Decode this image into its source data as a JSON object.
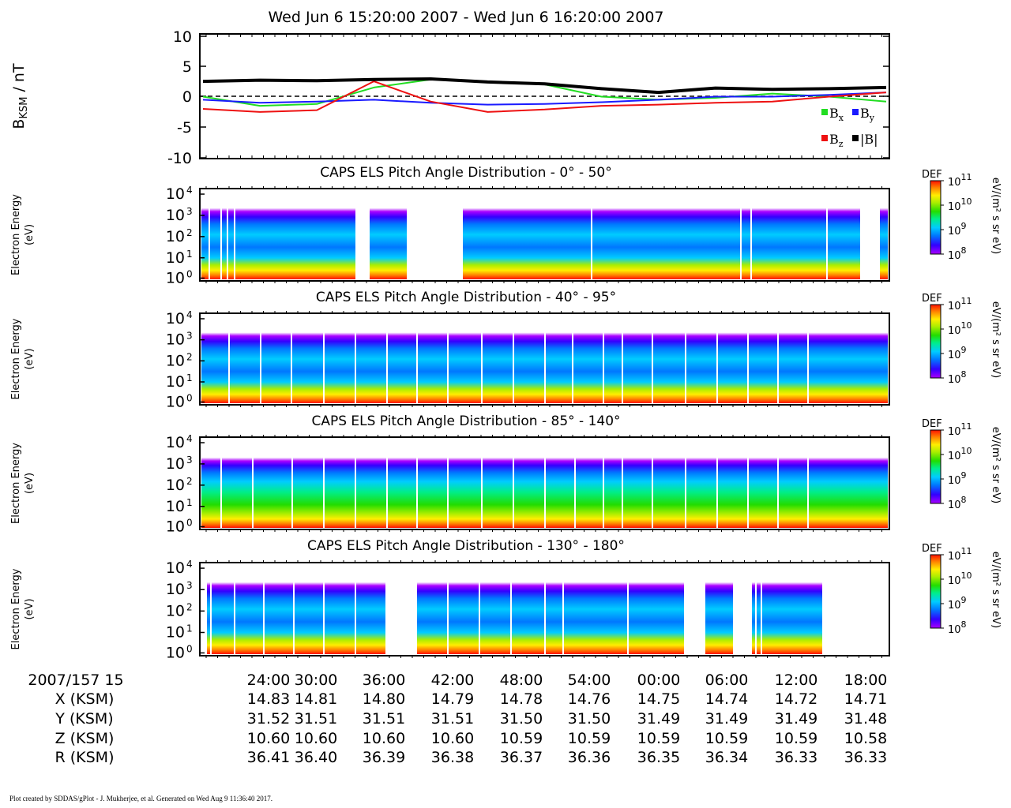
{
  "header": {
    "title": "Wed Jun 6 15:20:00 2007 - Wed Jun 6 16:20:00 2007"
  },
  "footer": {
    "text": "Plot created by SDDAS/gPlot - J. Mukherjee, et al.  Generated on Wed Aug 9 11:36:40 2017."
  },
  "colors": {
    "bx": "#22dd22",
    "by": "#1a1aff",
    "bz": "#ee1111",
    "bmag": "#000000",
    "colormap": [
      "#aa00ff",
      "#3300ff",
      "#0077ff",
      "#00ccff",
      "#00ee88",
      "#22dd00",
      "#aaee00",
      "#ffee00",
      "#ff8800",
      "#ff1100"
    ]
  },
  "chart_data": [
    {
      "type": "line",
      "ylabel": "BKSM / nT",
      "ylabel_main": "B",
      "ylabel_sub": "KSM",
      "ylabel_unit": "/ nT",
      "ylim": [
        -10,
        10
      ],
      "yticks": [
        "10",
        "5",
        "0",
        "-5",
        "-10"
      ],
      "zero_line": true,
      "legend_placement": "bottom-right",
      "x_minutes": [
        0,
        5,
        10,
        15,
        20,
        25,
        30,
        35,
        40,
        45,
        50,
        55,
        60
      ],
      "series": [
        {
          "name": "Bx",
          "label_main": "B",
          "label_sub": "x",
          "values": [
            0.0,
            -1.5,
            -1.2,
            1.5,
            2.8,
            2.5,
            2.0,
            0.0,
            -0.5,
            -0.2,
            0.5,
            0.0,
            -0.8
          ]
        },
        {
          "name": "By",
          "label_main": "B",
          "label_sub": "y",
          "values": [
            -0.5,
            -1.0,
            -0.8,
            -0.5,
            -1.0,
            -1.3,
            -1.2,
            -0.9,
            -0.5,
            0.0,
            0.0,
            0.3,
            0.7
          ]
        },
        {
          "name": "Bz",
          "label_main": "B",
          "label_sub": "z",
          "values": [
            -2.0,
            -2.5,
            -2.2,
            2.5,
            -0.8,
            -2.5,
            -2.1,
            -1.5,
            -1.3,
            -1.0,
            -0.8,
            0.0,
            0.7
          ]
        },
        {
          "name": "|B|",
          "label_main": "|B|",
          "label_sub": "",
          "values": [
            2.5,
            2.7,
            2.6,
            2.8,
            2.9,
            2.4,
            2.1,
            1.3,
            0.7,
            1.4,
            1.2,
            1.3,
            1.5
          ]
        }
      ]
    },
    {
      "type": "heatmap",
      "title": "CAPS ELS Pitch Angle Distribution - 0° - 50°",
      "ylabel_lines": [
        "Electron Energy",
        "(eV)"
      ],
      "yticks": [
        "4",
        "3",
        "2",
        "1",
        "0"
      ],
      "cbar_title": "DEF",
      "cbar_label": "eV/(m² s sr eV)",
      "cbar_ticks": [
        "11",
        "10",
        "9",
        "8"
      ]
    },
    {
      "type": "heatmap",
      "title": "CAPS ELS Pitch Angle Distribution - 40° - 95°",
      "ylabel_lines": [
        "Electron Energy",
        "(eV)"
      ],
      "yticks": [
        "4",
        "3",
        "2",
        "1",
        "0"
      ],
      "cbar_title": "DEF",
      "cbar_label": "eV/(m² s sr eV)",
      "cbar_ticks": [
        "11",
        "10",
        "9",
        "8"
      ]
    },
    {
      "type": "heatmap",
      "title": "CAPS ELS Pitch Angle Distribution - 85° - 140°",
      "ylabel_lines": [
        "Electron Energy",
        "(eV)"
      ],
      "yticks": [
        "4",
        "3",
        "2",
        "1",
        "0"
      ],
      "cbar_title": "DEF",
      "cbar_label": "eV/(m² s sr eV)",
      "cbar_ticks": [
        "11",
        "10",
        "9",
        "8"
      ]
    },
    {
      "type": "heatmap",
      "title": "CAPS ELS Pitch Angle Distribution - 130° - 180°",
      "ylabel_lines": [
        "Electron Energy",
        "(eV)"
      ],
      "yticks": [
        "4",
        "3",
        "2",
        "1",
        "0"
      ],
      "cbar_title": "DEF",
      "cbar_label": "eV/(m² s sr eV)",
      "cbar_ticks": [
        "11",
        "10",
        "9",
        "8"
      ]
    }
  ],
  "ephemeris": {
    "row_labels": [
      "2007/157 15",
      "X (KSM)",
      "Y (KSM)",
      "Z (KSM)",
      "R (KSM)"
    ],
    "time_ticks": [
      "24:00",
      "30:00",
      "36:00",
      "42:00",
      "48:00",
      "54:00",
      "00:00",
      "06:00",
      "12:00",
      "18:00"
    ],
    "x": [
      "14.83",
      "14.81",
      "14.80",
      "14.79",
      "14.78",
      "14.76",
      "14.75",
      "14.74",
      "14.72",
      "14.71"
    ],
    "y": [
      "31.52",
      "31.51",
      "31.51",
      "31.51",
      "31.50",
      "31.50",
      "31.49",
      "31.49",
      "31.49",
      "31.48"
    ],
    "z": [
      "10.60",
      "10.60",
      "10.60",
      "10.60",
      "10.59",
      "10.59",
      "10.59",
      "10.59",
      "10.59",
      "10.58"
    ],
    "r": [
      "36.41",
      "36.40",
      "36.39",
      "36.38",
      "36.37",
      "36.36",
      "36.35",
      "36.34",
      "36.33",
      "36.33"
    ]
  }
}
